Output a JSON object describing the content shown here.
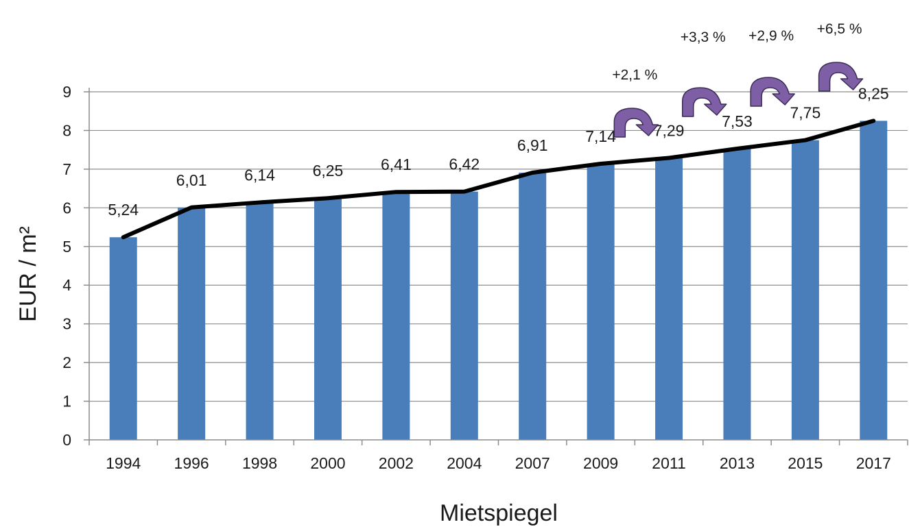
{
  "chart_data": {
    "type": "bar",
    "categories": [
      "1994",
      "1996",
      "1998",
      "2000",
      "2002",
      "2004",
      "2007",
      "2009",
      "2011",
      "2013",
      "2015",
      "2017"
    ],
    "values": [
      5.24,
      6.01,
      6.14,
      6.25,
      6.41,
      6.42,
      6.91,
      7.14,
      7.29,
      7.53,
      7.75,
      8.25
    ],
    "data_labels": [
      "5,24",
      "6,01",
      "6,14",
      "6,25",
      "6,41",
      "6,42",
      "6,91",
      "7,14",
      "7,29",
      "7,53",
      "7,75",
      "8,25"
    ],
    "line_overlay": {
      "values": [
        5.24,
        6.01,
        6.14,
        6.25,
        6.41,
        6.42,
        6.91,
        7.14,
        7.29,
        7.53,
        7.75,
        8.25
      ],
      "color": "#000000"
    },
    "y_ticks": [
      "0",
      "1",
      "2",
      "3",
      "4",
      "5",
      "6",
      "7",
      "8",
      "9"
    ],
    "ylim": [
      0,
      9
    ],
    "xlabel": "Mietspiegel",
    "ylabel": "EUR / m²",
    "grid": true,
    "legend": "none",
    "bar_color": "#4a7ebb",
    "annotations": [
      {
        "text": "+2,1 %",
        "from": "2009",
        "to": "2011",
        "arrow_color": "#7e5fa6"
      },
      {
        "text": "+3,3 %",
        "from": "2011",
        "to": "2013",
        "arrow_color": "#7e5fa6"
      },
      {
        "text": "+2,9 %",
        "from": "2013",
        "to": "2015",
        "arrow_color": "#7e5fa6"
      },
      {
        "text": "+6,5 %",
        "from": "2015",
        "to": "2017",
        "arrow_color": "#7e5fa6"
      }
    ]
  }
}
